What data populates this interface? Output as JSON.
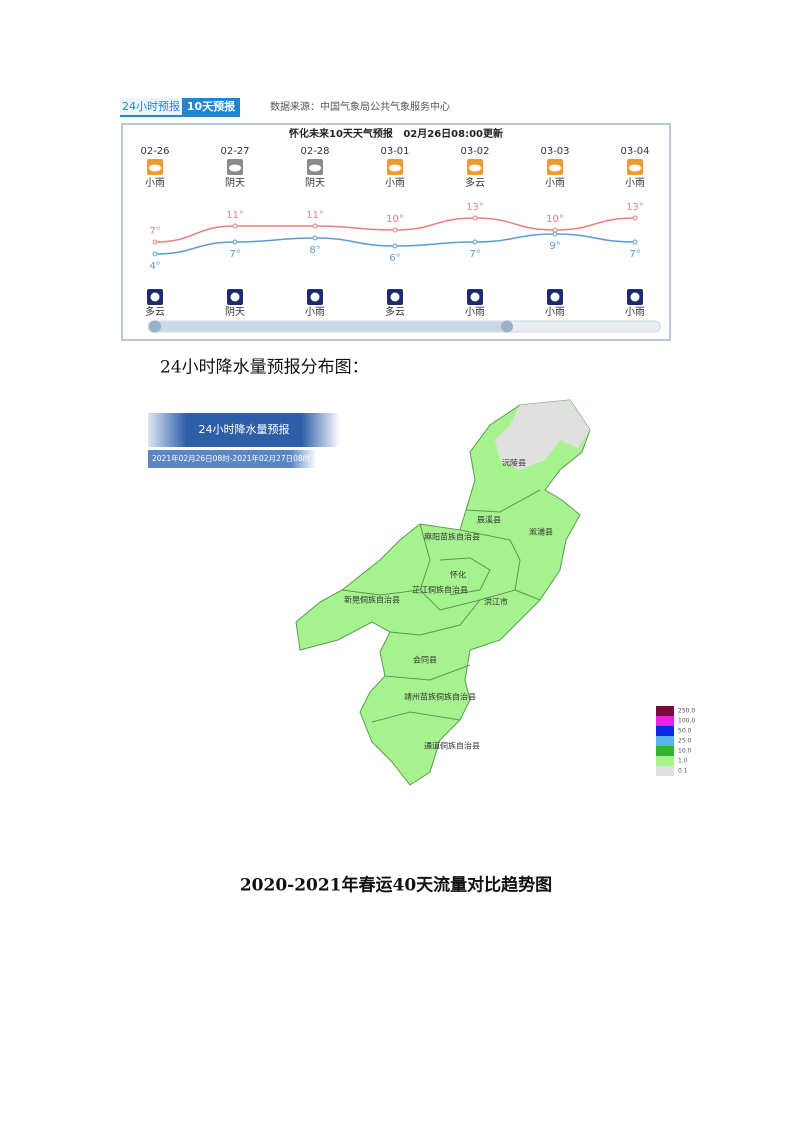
{
  "forecast": {
    "tabs": [
      "24小时预报",
      "10天预报"
    ],
    "source": "数据来源：中国气象局公共气象服务中心",
    "title": "怀化未来10天天气预报   02月26日08:00更新",
    "days": [
      {
        "date": "02-26",
        "day": "小雨",
        "night": "多云"
      },
      {
        "date": "02-27",
        "day": "阴天",
        "night": "阴天"
      },
      {
        "date": "02-28",
        "day": "阴天",
        "night": "小雨"
      },
      {
        "date": "03-01",
        "day": "小雨",
        "night": "多云"
      },
      {
        "date": "03-02",
        "day": "多云",
        "night": "小雨"
      },
      {
        "date": "03-03",
        "day": "小雨",
        "night": "小雨"
      },
      {
        "date": "03-04",
        "day": "小雨",
        "night": "小雨"
      }
    ],
    "high": {
      "color": "#e88080",
      "values": [
        7,
        11,
        11,
        10,
        13,
        10,
        13
      ],
      "value_labels": [
        "7°",
        "11°",
        "11°",
        "10°",
        "13°",
        "10°",
        "13°"
      ]
    },
    "low": {
      "color": "#5b9bd5",
      "values": [
        4,
        7,
        8,
        6,
        7,
        9,
        7
      ],
      "value_labels": [
        "4°",
        "7°",
        "8°",
        "6°",
        "7°",
        "9°",
        "7°"
      ]
    }
  },
  "caption": "24小时降水量预报分布图：",
  "map": {
    "header": "24小时降水量预报",
    "period": "2021年02月26日08时-2021年02月27日08时",
    "counties": [
      "沅陵县",
      "辰溪县",
      "溆浦县",
      "麻阳苗族自治县",
      "怀化",
      "芷江侗族自治县",
      "新晃侗族自治县",
      "洪江市",
      "会同县",
      "靖州苗族侗族自治县",
      "通道侗族自治县"
    ],
    "legend": [
      {
        "label": "250.0",
        "color": "#7a0a3c"
      },
      {
        "label": "100.0",
        "color": "#f01ee6"
      },
      {
        "label": "50.0",
        "color": "#0a28e6"
      },
      {
        "label": "25.0",
        "color": "#5ab4f0"
      },
      {
        "label": "10.0",
        "color": "#32b432"
      },
      {
        "label": "1.0",
        "color": "#a6f28f"
      },
      {
        "label": "0.1",
        "color": "#e0e0e0"
      }
    ]
  },
  "section_title": "2020-2021年春运40天流量对比趋势图"
}
